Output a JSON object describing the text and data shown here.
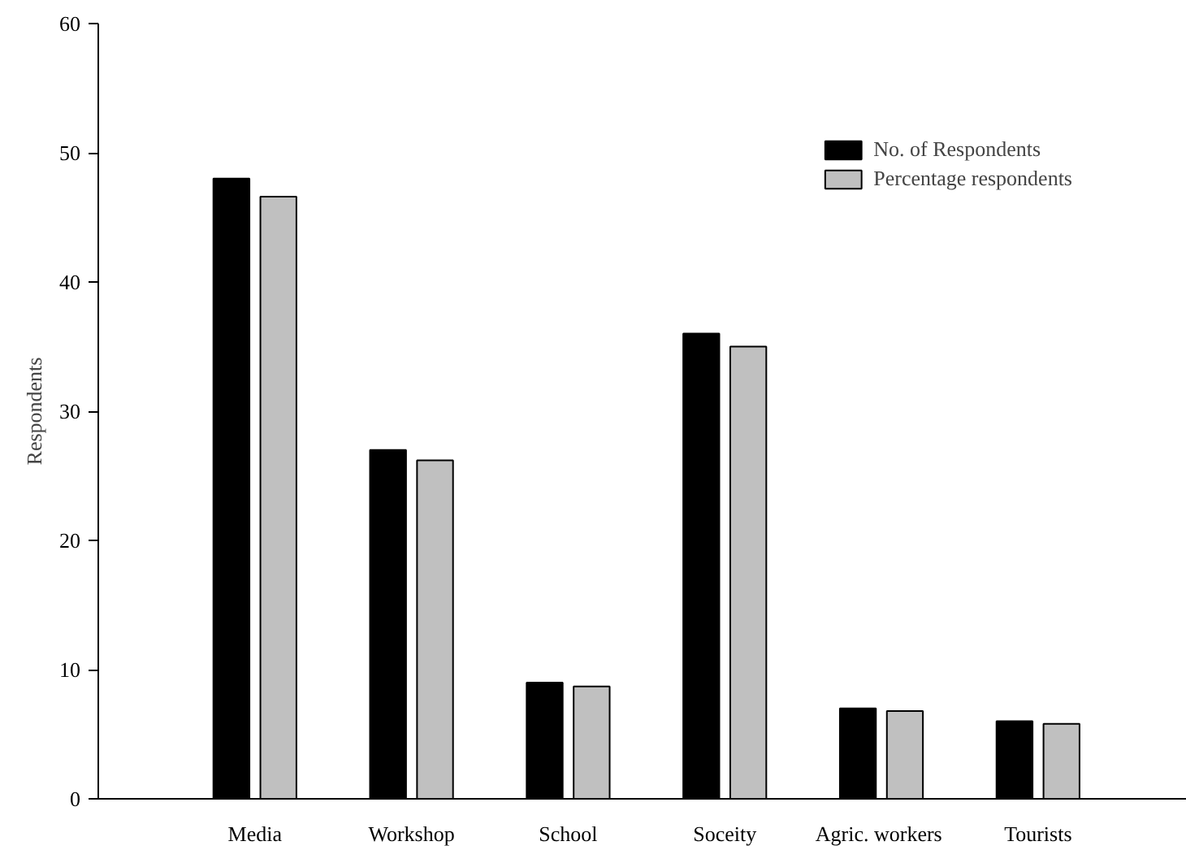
{
  "chart_data": {
    "type": "bar",
    "ylabel": "Respondents",
    "categories": [
      "Media",
      "Workshop",
      "School",
      "Soceity",
      "Agric.  workers",
      "Tourists"
    ],
    "series": [
      {
        "name": "No. of Respondents",
        "color": "#000000",
        "values": [
          48,
          27,
          9,
          36,
          7,
          6
        ]
      },
      {
        "name": "Percentage respondents",
        "color": "#c0c0c0",
        "values": [
          46.6,
          26.2,
          8.7,
          35.0,
          6.8,
          5.8
        ]
      }
    ],
    "ylim": [
      0,
      60
    ],
    "yticks": [
      0,
      10,
      20,
      30,
      40,
      50,
      60
    ],
    "grid": false,
    "legend": "top right"
  }
}
